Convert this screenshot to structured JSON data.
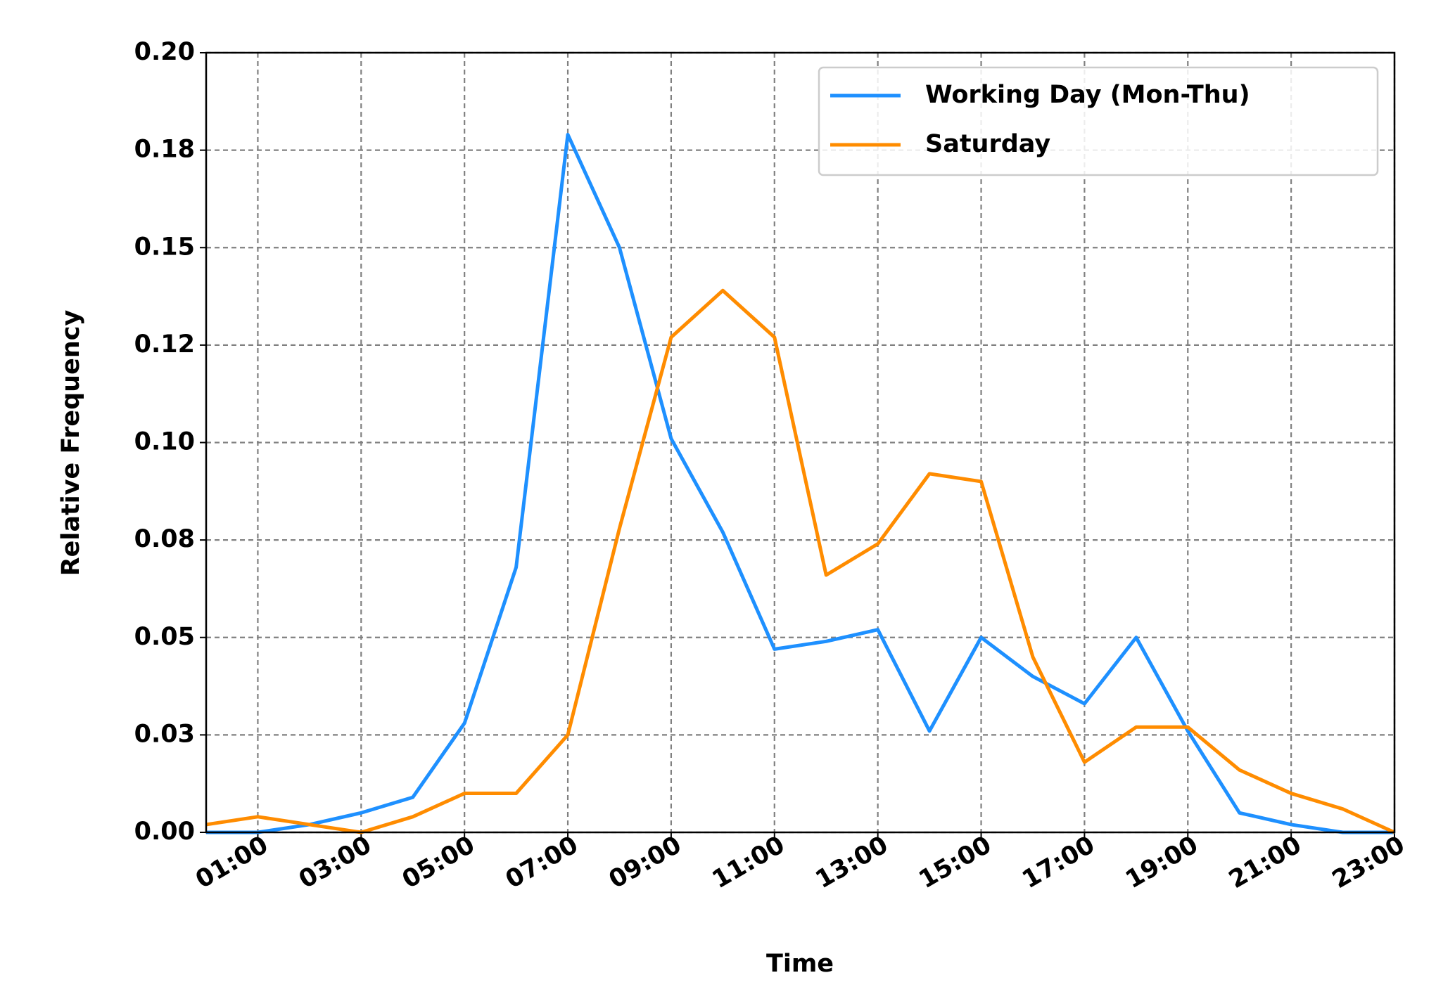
{
  "chart_data": {
    "type": "line",
    "x_label": "Time",
    "y_label": "Relative Frequency",
    "x": [
      0,
      1,
      2,
      3,
      4,
      5,
      6,
      7,
      8,
      9,
      10,
      11,
      12,
      13,
      14,
      15,
      16,
      17,
      18,
      19,
      20,
      21,
      22,
      23
    ],
    "series": [
      {
        "name": "Working Day (Mon-Thu)",
        "color": "#1e90ff",
        "values": [
          0,
          0,
          0.002,
          0.005,
          0.009,
          0.028,
          0.068,
          0.179,
          0.15,
          0.101,
          0.077,
          0.047,
          0.049,
          0.052,
          0.026,
          0.05,
          0.04,
          0.033,
          0.05,
          0.026,
          0.005,
          0.002,
          0,
          0
        ]
      },
      {
        "name": "Saturday",
        "color": "#ff8c00",
        "values": [
          0.002,
          0.004,
          0.002,
          0,
          0.004,
          0.01,
          0.01,
          0.025,
          0.078,
          0.127,
          0.139,
          0.127,
          0.066,
          0.074,
          0.092,
          0.09,
          0.045,
          0.018,
          0.027,
          0.027,
          0.016,
          0.01,
          0.006,
          0
        ]
      }
    ],
    "xlim": [
      0,
      23
    ],
    "xticks": [
      {
        "value": 1,
        "label": "01:00"
      },
      {
        "value": 3,
        "label": "03:00"
      },
      {
        "value": 5,
        "label": "05:00"
      },
      {
        "value": 7,
        "label": "07:00"
      },
      {
        "value": 9,
        "label": "09:00"
      },
      {
        "value": 11,
        "label": "11:00"
      },
      {
        "value": 13,
        "label": "13:00"
      },
      {
        "value": 15,
        "label": "15:00"
      },
      {
        "value": 17,
        "label": "17:00"
      },
      {
        "value": 19,
        "label": "19:00"
      },
      {
        "value": 21,
        "label": "21:00"
      },
      {
        "value": 23,
        "label": "23:00"
      }
    ],
    "ylim": [
      0,
      0.2
    ],
    "yticks": [
      {
        "value": 0,
        "label": "0.00"
      },
      {
        "value": 0.025,
        "label": "0.03"
      },
      0.05,
      {
        "value": 0.075,
        "label": "0.08"
      },
      {
        "value": 0.1,
        "label": "0.10"
      },
      {
        "value": 0.125,
        "label": "0.12"
      },
      0.15,
      {
        "value": 0.175,
        "label": "0.18"
      },
      {
        "value": 0.2,
        "label": "0.20"
      }
    ],
    "grid": true,
    "legend": "upper right"
  }
}
